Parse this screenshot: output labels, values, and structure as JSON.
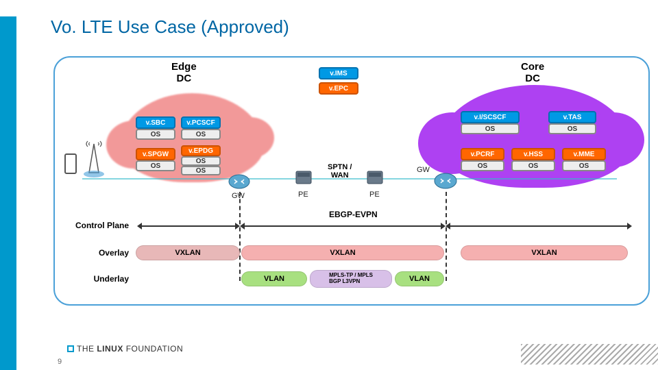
{
  "title": "Vo. LTE Use Case (Approved)",
  "headers": {
    "edge": "Edge\nDC",
    "core": "Core\nDC"
  },
  "nf": {
    "vims": {
      "label": "v.IMS",
      "bg": "#0099e5",
      "border": "#0072b0"
    },
    "vepc": {
      "label": "v.EPC",
      "bg": "#ff6600",
      "border": "#cc5200"
    },
    "vsbc": {
      "label": "v.SBC",
      "bg": "#0099e5",
      "border": "#0072b0"
    },
    "vpcscf": {
      "label": "v.PCSCF",
      "bg": "#0099e5",
      "border": "#0072b0"
    },
    "vspgw": {
      "label": "v.SPGW",
      "bg": "#ff6600",
      "border": "#cc5200"
    },
    "vepdg": {
      "label": "v.EPDG",
      "bg": "#ff6600",
      "border": "#cc5200"
    },
    "viscscf": {
      "label": "v.I/SCSCF",
      "bg": "#0099e5",
      "border": "#0072b0"
    },
    "vtas": {
      "label": "v.TAS",
      "bg": "#0099e5",
      "border": "#0072b0"
    },
    "vpcrf": {
      "label": "v.PCRF",
      "bg": "#ff6600",
      "border": "#cc5200"
    },
    "vhss": {
      "label": "v.HSS",
      "bg": "#ff6600",
      "border": "#cc5200"
    },
    "vmme": {
      "label": "v.MME",
      "bg": "#ff6600",
      "border": "#cc5200"
    },
    "os": {
      "label": "OS"
    }
  },
  "devices": {
    "gw1": "GW",
    "pe1": "PE",
    "pe2": "PE",
    "gw2": "GW",
    "sptn": "SPTN /\nWAN"
  },
  "planes": {
    "control": "Control Plane",
    "overlay": "Overlay",
    "underlay": "Underlay",
    "ebgp": "EBGP-EVPN"
  },
  "bars": {
    "vxlan": "VXLAN",
    "vlan": "VLAN",
    "mpls": "MPLS-TP / MPLS\nBGP L3VPN",
    "colors": {
      "vxlan1": "#e8b8b8",
      "vxlan2": "#f5b0b0",
      "vxlan3": "#f5b0b0",
      "vlan": "#a8e080",
      "mpls": "#d8c0e8"
    }
  },
  "footer": {
    "brand": "THE LINUX FOUNDATION",
    "page": "9"
  },
  "colors": {
    "accent": "#0099cc",
    "title": "#0066a4",
    "edge_cloud": "#f08080",
    "core_cloud": "#a020f0"
  }
}
